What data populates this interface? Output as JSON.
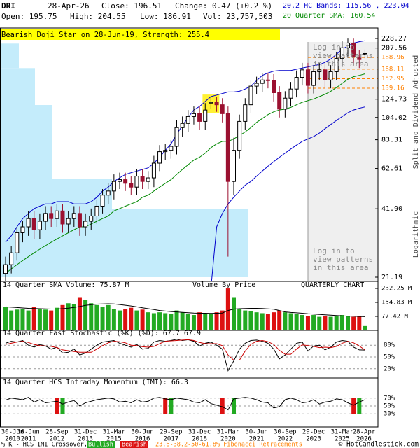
{
  "header": {
    "symbol": "DRI",
    "date": "28-Apr-26",
    "close": "Close: 196.51",
    "change": "Change: 0.47 (+0.2 %)",
    "open": "Open: 195.75",
    "high": "High: 204.55",
    "low": "Low: 186.91",
    "volume": "Vol: 23,757,503",
    "bands": "20,2 HC Bands: 115.56 , 223.04",
    "sma": "20 Quarter SMA: 160.54"
  },
  "chart_data": [
    {
      "type": "candlestick",
      "pattern": "Bearish Doji Star on 28-Jun-19, Strength: 255.4",
      "pattern_index": 36,
      "login_note": [
        "Log in to",
        "view patterns",
        "in this area"
      ],
      "side_labels": [
        "Split and Dividend Adjusted",
        "Logarithmic"
      ],
      "log_scale": true,
      "ylim": [
        21.19,
        228.27
      ],
      "yticks": [
        228.27,
        207.56,
        124.73,
        104.02,
        83.31,
        62.61,
        {
          "value": 41.9,
          "label": "41.90"
        },
        21.19
      ],
      "fib_levels": [
        188.96,
        168.11,
        152.95,
        139.16
      ],
      "fib_color": "#ff8000",
      "up_color": "#ffffff",
      "down_color": "#9b1030",
      "categories": [
        [
          "30-Jun",
          "2010"
        ],
        null,
        null,
        null,
        [
          "30-Jun",
          "2011"
        ],
        null,
        null,
        null,
        null,
        [
          "28-Sep",
          "2012"
        ],
        null,
        null,
        null,
        null,
        [
          "31-Dec",
          "2013"
        ],
        null,
        null,
        null,
        null,
        [
          "31-Mar",
          "2015"
        ],
        null,
        null,
        null,
        null,
        [
          "30-Jun",
          "2016"
        ],
        null,
        null,
        null,
        null,
        [
          "29-Sep",
          "2017"
        ],
        null,
        null,
        null,
        null,
        [
          "31-Dec",
          "2018"
        ],
        null,
        null,
        null,
        null,
        [
          "31-Mar",
          "2020"
        ],
        null,
        null,
        null,
        null,
        [
          "30-Jun",
          "2021"
        ],
        null,
        null,
        null,
        null,
        [
          "30-Sep",
          "2022"
        ],
        null,
        null,
        null,
        null,
        [
          "29-Dec",
          "2023"
        ],
        null,
        null,
        null,
        null,
        [
          "31-Mar",
          "2025"
        ],
        null,
        null,
        null,
        [
          "28-Apr",
          "2026"
        ]
      ],
      "open": [
        22,
        24,
        27,
        33,
        35,
        38,
        34,
        37,
        40,
        38,
        41,
        36,
        38,
        40,
        35,
        37,
        39,
        43,
        48,
        50,
        55,
        56,
        54,
        52,
        58,
        55,
        57,
        66,
        74,
        75,
        78,
        94,
        98,
        105,
        108,
        100,
        120,
        121,
        118,
        108,
        55,
        75,
        100,
        118,
        142,
        146,
        151,
        150,
        133,
        113,
        126,
        138,
        155,
        167,
        143,
        164,
        167,
        151,
        164,
        187,
        208,
        218,
        190,
        195.75
      ],
      "high": [
        26,
        29,
        35,
        37,
        41,
        41,
        40,
        43,
        43,
        44,
        44,
        41,
        43,
        43,
        40,
        42,
        46,
        51,
        54,
        59,
        60,
        60,
        58,
        62,
        62,
        61,
        71,
        79,
        80,
        83,
        101,
        105,
        112,
        116,
        116,
        120,
        127,
        128,
        126,
        116,
        85,
        107,
        126,
        150,
        156,
        162,
        162,
        160,
        142,
        135,
        148,
        166,
        179,
        179,
        175,
        179,
        179,
        175,
        200,
        223,
        228,
        228,
        203,
        204.55
      ],
      "low": [
        20,
        22,
        25,
        30,
        32,
        31,
        31,
        34,
        35,
        35,
        33,
        33,
        35,
        32,
        32,
        34,
        36,
        40,
        44,
        46,
        51,
        50,
        48,
        48,
        51,
        51,
        52,
        61,
        68,
        69,
        72,
        86,
        90,
        97,
        92,
        92,
        113,
        110,
        99,
        26,
        48,
        69,
        92,
        109,
        131,
        134,
        139,
        122,
        104,
        104,
        116,
        127,
        143,
        132,
        132,
        151,
        139,
        139,
        151,
        172,
        191,
        175,
        170,
        186.91
      ],
      "close": [
        24,
        27,
        33,
        35,
        38,
        34,
        37,
        40,
        38,
        41,
        36,
        38,
        40,
        35,
        37,
        39,
        43,
        48,
        50,
        55,
        56,
        54,
        52,
        58,
        55,
        57,
        66,
        74,
        75,
        78,
        94,
        98,
        105,
        108,
        100,
        112,
        121,
        118,
        108,
        55,
        75,
        100,
        118,
        142,
        146,
        151,
        150,
        133,
        113,
        126,
        138,
        155,
        167,
        143,
        164,
        167,
        151,
        164,
        187,
        208,
        218,
        190,
        185,
        196.51
      ],
      "series": [
        {
          "color": "#0000cc",
          "values": [
            30,
            32,
            35,
            38,
            40,
            42,
            43,
            44,
            44,
            45,
            45,
            45,
            44,
            44,
            44,
            45,
            47,
            50,
            52,
            55,
            57,
            59,
            60,
            61,
            62,
            63,
            66,
            70,
            75,
            80,
            88,
            96,
            104,
            112,
            116,
            122,
            128,
            130,
            132,
            134,
            134,
            135,
            138,
            142,
            150,
            158,
            162,
            165,
            166,
            166,
            166,
            168,
            170,
            172,
            174,
            176,
            180,
            186,
            195,
            205,
            212,
            218,
            221,
            223.04
          ]
        },
        {
          "color": "#0000cc",
          "values": [
            14,
            14,
            14,
            13,
            13,
            13,
            13,
            14,
            14,
            14,
            15,
            15,
            15,
            15,
            16,
            16,
            16,
            16,
            16,
            17,
            17,
            17,
            17,
            17,
            18,
            18,
            18,
            18,
            18,
            18,
            17,
            17,
            16,
            16,
            17,
            18,
            19,
            35,
            40,
            44,
            47,
            50,
            53,
            55,
            58,
            61,
            64,
            67,
            70,
            73,
            76,
            79,
            82,
            84,
            86,
            89,
            93,
            97,
            101,
            105,
            109,
            112,
            114,
            115.56
          ]
        },
        {
          "color": "#008800",
          "values": [
            22,
            23,
            24,
            25,
            26,
            27,
            28,
            29,
            30,
            31,
            32,
            33,
            34,
            35,
            35,
            36,
            37,
            38,
            39,
            41,
            42,
            43,
            44,
            45,
            47,
            48,
            50,
            52,
            54,
            56,
            59,
            62,
            65,
            68,
            70,
            73,
            77,
            80,
            82,
            82,
            84,
            87,
            90,
            94,
            99,
            103,
            107,
            110,
            112,
            113,
            115,
            118,
            121,
            123,
            125,
            128,
            131,
            135,
            140,
            146,
            152,
            156,
            158,
            160.54
          ]
        }
      ],
      "volume_by_price": {
        "bins": [
          21.19,
          41.9,
          56.6,
          117.7,
          170,
          217
        ],
        "values": [
          355,
          160,
          75,
          50,
          27
        ],
        "color": "#c4ecfb"
      }
    },
    {
      "type": "bar",
      "title": "14 Quarter SMA Volume: 75.87 M",
      "subtitle": "Volume By Price",
      "label": "QUARTERLY CHART",
      "ylim": [
        0,
        232.25
      ],
      "yticks": [
        {
          "value": 232.25,
          "label": "232.25 M"
        },
        {
          "value": 154.83,
          "label": "154.83 M"
        },
        {
          "value": 77.42,
          "label": "77.42 M"
        }
      ],
      "up_color": "#22aa22",
      "down_color": "#dd1111",
      "values": [
        130,
        110,
        115,
        120,
        110,
        130,
        120,
        115,
        110,
        125,
        140,
        150,
        145,
        180,
        170,
        150,
        140,
        130,
        140,
        120,
        110,
        120,
        125,
        110,
        115,
        100,
        95,
        100,
        95,
        90,
        110,
        100,
        90,
        85,
        100,
        95,
        90,
        100,
        110,
        232,
        180,
        120,
        110,
        105,
        100,
        95,
        90,
        100,
        110,
        100,
        95,
        90,
        85,
        80,
        85,
        75,
        80,
        75,
        80,
        85,
        80,
        75,
        80,
        23.76
      ],
      "series": [
        {
          "color": "#000000",
          "values": [
            130,
            128,
            126,
            124,
            122,
            121,
            120,
            119,
            118,
            118,
            120,
            123,
            127,
            132,
            138,
            142,
            145,
            146,
            147,
            146,
            143,
            139,
            135,
            130,
            125,
            120,
            115,
            110,
            107,
            104,
            102,
            100,
            98,
            96,
            95,
            95,
            94,
            95,
            96,
            110,
            118,
            120,
            121,
            122,
            122,
            121,
            119,
            117,
            110,
            102,
            99,
            97,
            95,
            92,
            90,
            88,
            86,
            84,
            82,
            80,
            79,
            78,
            77,
            75.87
          ]
        }
      ]
    },
    {
      "type": "line",
      "title": "14 Quarter Fast Stochastic (%K) (%D): 67.7 67.9",
      "ylim": [
        0,
        100
      ],
      "yticks": [
        {
          "value": 80,
          "label": "80%"
        },
        {
          "value": 50,
          "label": "50%"
        },
        {
          "value": 20,
          "label": "20%"
        }
      ],
      "series": [
        {
          "color": "#000000",
          "values": [
            85,
            90,
            88,
            92,
            80,
            75,
            82,
            78,
            70,
            75,
            60,
            62,
            70,
            55,
            60,
            70,
            80,
            88,
            90,
            92,
            85,
            80,
            75,
            82,
            70,
            72,
            88,
            92,
            90,
            92,
            95,
            92,
            94,
            90,
            78,
            85,
            88,
            80,
            70,
            15,
            40,
            70,
            85,
            92,
            93,
            90,
            85,
            70,
            45,
            55,
            70,
            85,
            88,
            65,
            78,
            80,
            68,
            75,
            88,
            92,
            90,
            75,
            68,
            67.7
          ]
        },
        {
          "color": "#cc0000",
          "values": [
            82,
            85,
            88,
            90,
            87,
            82,
            79,
            78,
            77,
            74,
            68,
            66,
            64,
            62,
            62,
            62,
            70,
            79,
            86,
            90,
            89,
            86,
            80,
            79,
            76,
            75,
            77,
            84,
            90,
            91,
            92,
            93,
            94,
            92,
            87,
            84,
            84,
            84,
            79,
            55,
            42,
            42,
            65,
            82,
            90,
            92,
            89,
            82,
            67,
            57,
            57,
            70,
            81,
            79,
            77,
            74,
            75,
            74,
            77,
            85,
            90,
            86,
            78,
            67.9
          ]
        }
      ]
    },
    {
      "type": "line",
      "title": "14 Quarter HCS Intraday Momentum (IMI): 66.3",
      "ylim": [
        0,
        100
      ],
      "yticks": [
        {
          "value": 70,
          "label": "70%"
        },
        {
          "value": 50,
          "label": "50%"
        },
        {
          "value": 30,
          "label": "30%"
        }
      ],
      "series": [
        {
          "color": "#000000",
          "values": [
            65,
            70,
            68,
            66,
            72,
            60,
            66,
            58,
            60,
            62,
            55,
            60,
            64,
            50,
            58,
            62,
            66,
            68,
            70,
            68,
            60,
            62,
            58,
            66,
            60,
            62,
            70,
            72,
            68,
            66,
            70,
            68,
            66,
            60,
            58,
            66,
            56,
            52,
            48,
            40,
            68,
            70,
            72,
            70,
            66,
            60,
            58,
            45,
            48,
            66,
            70,
            66,
            58,
            60,
            66,
            55,
            60,
            62,
            68,
            66,
            58,
            52,
            60,
            66.3
          ]
        }
      ],
      "bullish": [
        10,
        29,
        40,
        62
      ],
      "bullish_color": "#22aa22",
      "bearish": [
        9,
        28,
        38,
        61
      ],
      "bearish_color": "#dd1111"
    }
  ],
  "footer": {
    "crossover": "% K - HCS IMI Crossover,",
    "bullish": "Bullish",
    "bearish": "Bearish",
    "fibonacci": "23.6-38.2-50-61.8% Fibonacci Retracements",
    "copyright": "© HotCandlestick.com"
  }
}
